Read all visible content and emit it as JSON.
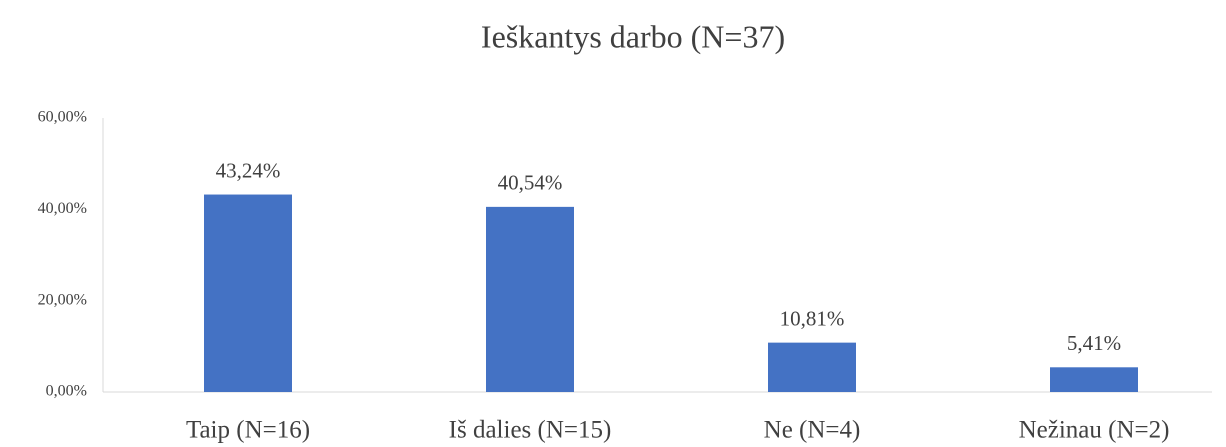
{
  "chart_data": {
    "type": "bar",
    "title": "Ieškantys darbo (N=37)",
    "categories": [
      "Taip (N=16)",
      "Iš dalies (N=15)",
      "Ne (N=4)",
      "Nežinau (N=2)"
    ],
    "values": [
      43.24,
      40.54,
      10.81,
      5.41
    ],
    "value_labels": [
      "43,24%",
      "40,54%",
      "10,81%",
      "5,41%"
    ],
    "color": "#4472c4",
    "ylim": [
      0,
      60
    ],
    "yticks": [
      {
        "value": 0,
        "label": "0,00%"
      },
      {
        "value": 20,
        "label": "20,00%"
      },
      {
        "value": 40,
        "label": "40,00%"
      },
      {
        "value": 60,
        "label": "60,00%"
      }
    ],
    "grid": false
  }
}
